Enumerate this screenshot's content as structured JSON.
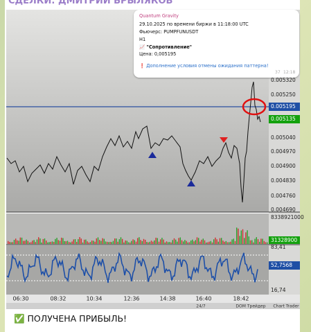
{
  "header": {
    "title": "СДЕЛКИ: ДМИТРИЙ БРЫЛЯКОВ"
  },
  "bubble": {
    "author": "Quantum Gravity",
    "lines": [
      "29.10.2025 по времени биржи в 11:18:00 UTC",
      "Фьючерс: PUMPFUNUSDT",
      "H1",
      "📈 \"Сопротивление\"",
      "Цена: 0,005195"
    ],
    "notice": "❗ Дополнение условия отмены ожидания паттерна!",
    "views": "37",
    "time": "12:18"
  },
  "chart": {
    "price_labels": [
      "0.005320",
      "0.005250",
      "0.005195",
      "0.005135",
      "0.005040",
      "0.004970",
      "0.004900",
      "0.004830",
      "0.004760",
      "0.004690"
    ],
    "volume_labels": [
      "8338921000",
      "31328900"
    ],
    "indicator_labels": [
      "83,41",
      "52,7568",
      "16,74"
    ],
    "time_labels": [
      "06:30",
      "08:32",
      "10:34",
      "12:36",
      "14:38",
      "16:40",
      "18:42"
    ],
    "toolbar": [
      "24/7",
      "DOM Трейдер",
      "Chart Trader"
    ]
  },
  "caption": "✅ ПОЛУЧЕНА ПРИБЫЛЬ!"
}
